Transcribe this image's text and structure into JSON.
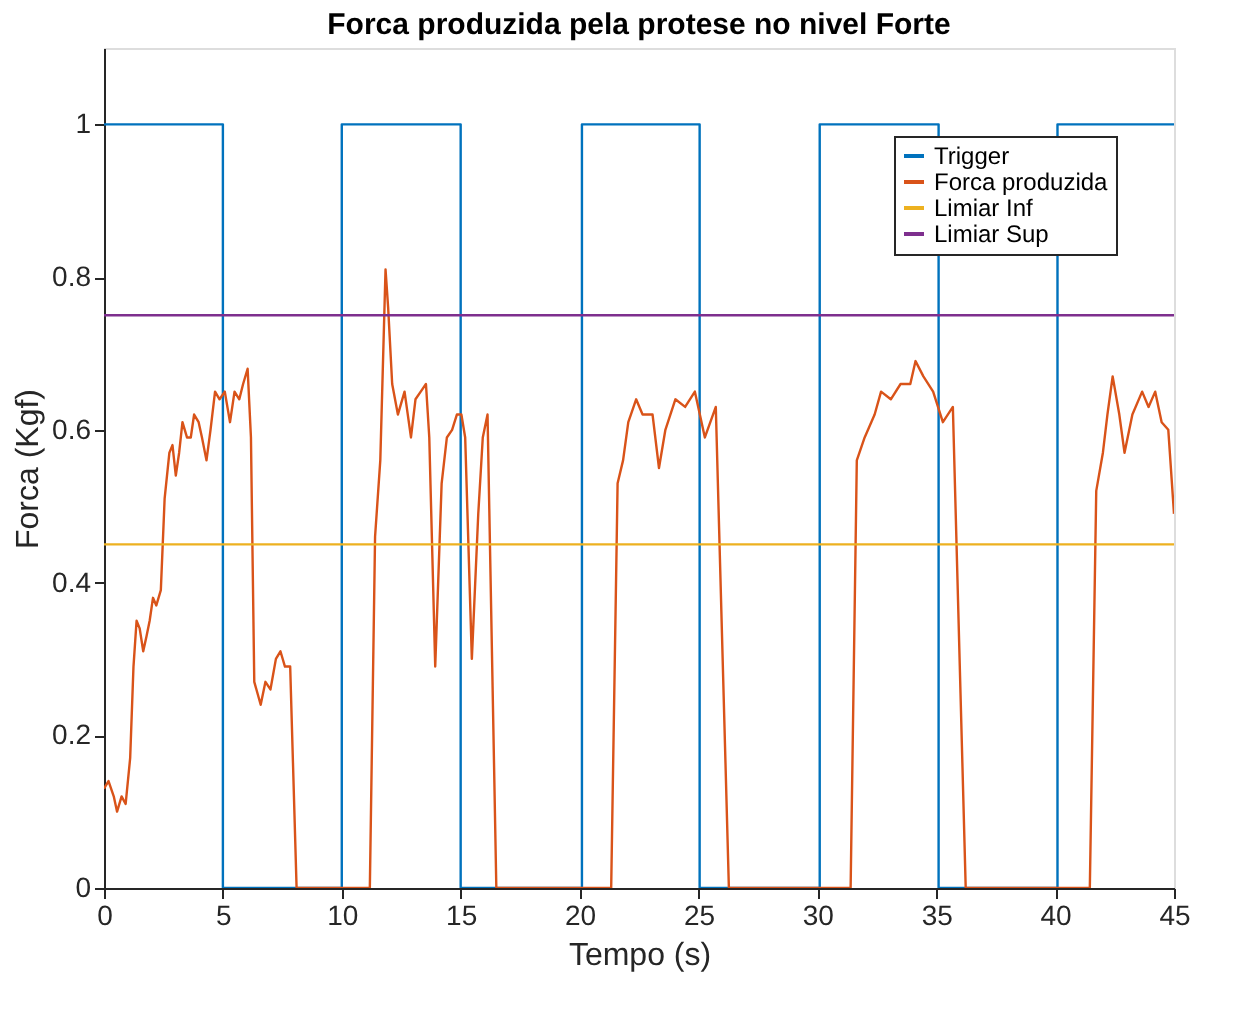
{
  "chart_data": {
    "type": "line",
    "title": "Forca produzida pela protese no nivel Forte",
    "xlabel": "Tempo (s)",
    "ylabel": "Forca (Kgf)",
    "xlim": [
      0,
      45
    ],
    "ylim": [
      0,
      1.1
    ],
    "xticks": [
      0,
      5,
      10,
      15,
      20,
      25,
      30,
      35,
      40,
      45
    ],
    "yticks": [
      0,
      0.2,
      0.4,
      0.6,
      0.8,
      1
    ],
    "grid": false,
    "legend": "top right",
    "marker": "none",
    "line_style": "solid",
    "series": [
      {
        "name": "Trigger",
        "type": "step",
        "color": "#0072bd",
        "x": [
          0,
          5,
          10,
          15,
          20.1,
          25.05,
          30.1,
          35.1,
          40.1,
          45
        ],
        "values": [
          1,
          0,
          1,
          0,
          1,
          0,
          1,
          0,
          1,
          1
        ]
      },
      {
        "name": "Forca produzida",
        "type": "line",
        "color": "#d95319",
        "x": [
          0,
          0.19,
          0.41,
          0.55,
          0.74,
          0.91,
          1.1,
          1.24,
          1.37,
          1.5,
          1.65,
          1.79,
          1.92,
          2.06,
          2.2,
          2.39,
          2.55,
          2.75,
          2.88,
          3.02,
          3.16,
          3.3,
          3.49,
          3.65,
          3.79,
          3.98,
          4.12,
          4.31,
          4.48,
          4.67,
          4.86,
          5.08,
          5.3,
          5.49,
          5.69,
          5.85,
          6.04,
          6.18,
          6.32,
          6.59,
          6.79,
          7.0,
          7.23,
          7.42,
          7.61,
          7.83,
          8.1,
          11.18,
          11.4,
          11.62,
          11.84,
          11.95,
          12.12,
          12.36,
          12.64,
          12.91,
          13.1,
          13.32,
          13.54,
          13.68,
          13.93,
          14.2,
          14.42,
          14.64,
          14.84,
          15.03,
          15.19,
          15.47,
          15.74,
          15.93,
          16.13,
          16.5,
          21.33,
          21.6,
          21.83,
          22.05,
          22.38,
          22.65,
          23.07,
          23.34,
          23.61,
          24.03,
          24.44,
          24.85,
          25.27,
          25.73,
          26.28,
          31.4,
          31.66,
          31.99,
          32.41,
          32.68,
          33.09,
          33.5,
          33.91,
          34.13,
          34.46,
          34.87,
          35.28,
          35.7,
          36.24,
          41.46,
          41.73,
          42.01,
          42.2,
          42.42,
          42.7,
          42.92,
          43.25,
          43.66,
          43.93,
          44.21,
          44.48,
          44.76,
          45
        ],
        "values": [
          0.13,
          0.14,
          0.12,
          0.1,
          0.12,
          0.11,
          0.17,
          0.29,
          0.35,
          0.34,
          0.31,
          0.33,
          0.35,
          0.38,
          0.37,
          0.39,
          0.51,
          0.57,
          0.58,
          0.54,
          0.57,
          0.61,
          0.59,
          0.59,
          0.62,
          0.61,
          0.59,
          0.56,
          0.6,
          0.65,
          0.64,
          0.65,
          0.61,
          0.65,
          0.64,
          0.66,
          0.68,
          0.59,
          0.27,
          0.24,
          0.27,
          0.26,
          0.3,
          0.31,
          0.29,
          0.29,
          0,
          0,
          0.46,
          0.56,
          0.81,
          0.76,
          0.66,
          0.62,
          0.65,
          0.59,
          0.64,
          0.65,
          0.66,
          0.59,
          0.29,
          0.53,
          0.59,
          0.6,
          0.62,
          0.62,
          0.59,
          0.3,
          0.49,
          0.59,
          0.62,
          0,
          0,
          0.53,
          0.56,
          0.61,
          0.64,
          0.62,
          0.62,
          0.55,
          0.6,
          0.64,
          0.63,
          0.65,
          0.59,
          0.63,
          0,
          0,
          0.56,
          0.59,
          0.62,
          0.65,
          0.64,
          0.66,
          0.66,
          0.69,
          0.67,
          0.65,
          0.61,
          0.63,
          0,
          0,
          0.52,
          0.57,
          0.62,
          0.67,
          0.62,
          0.57,
          0.62,
          0.65,
          0.63,
          0.65,
          0.61,
          0.6,
          0.49
        ]
      },
      {
        "name": "Limiar Inf",
        "color": "#edb120",
        "x": [
          0,
          45
        ],
        "values": [
          0.45,
          0.45
        ]
      },
      {
        "name": "Limiar Sup",
        "color": "#7e2f8e",
        "x": [
          0,
          45
        ],
        "values": [
          0.75,
          0.75
        ]
      }
    ]
  }
}
